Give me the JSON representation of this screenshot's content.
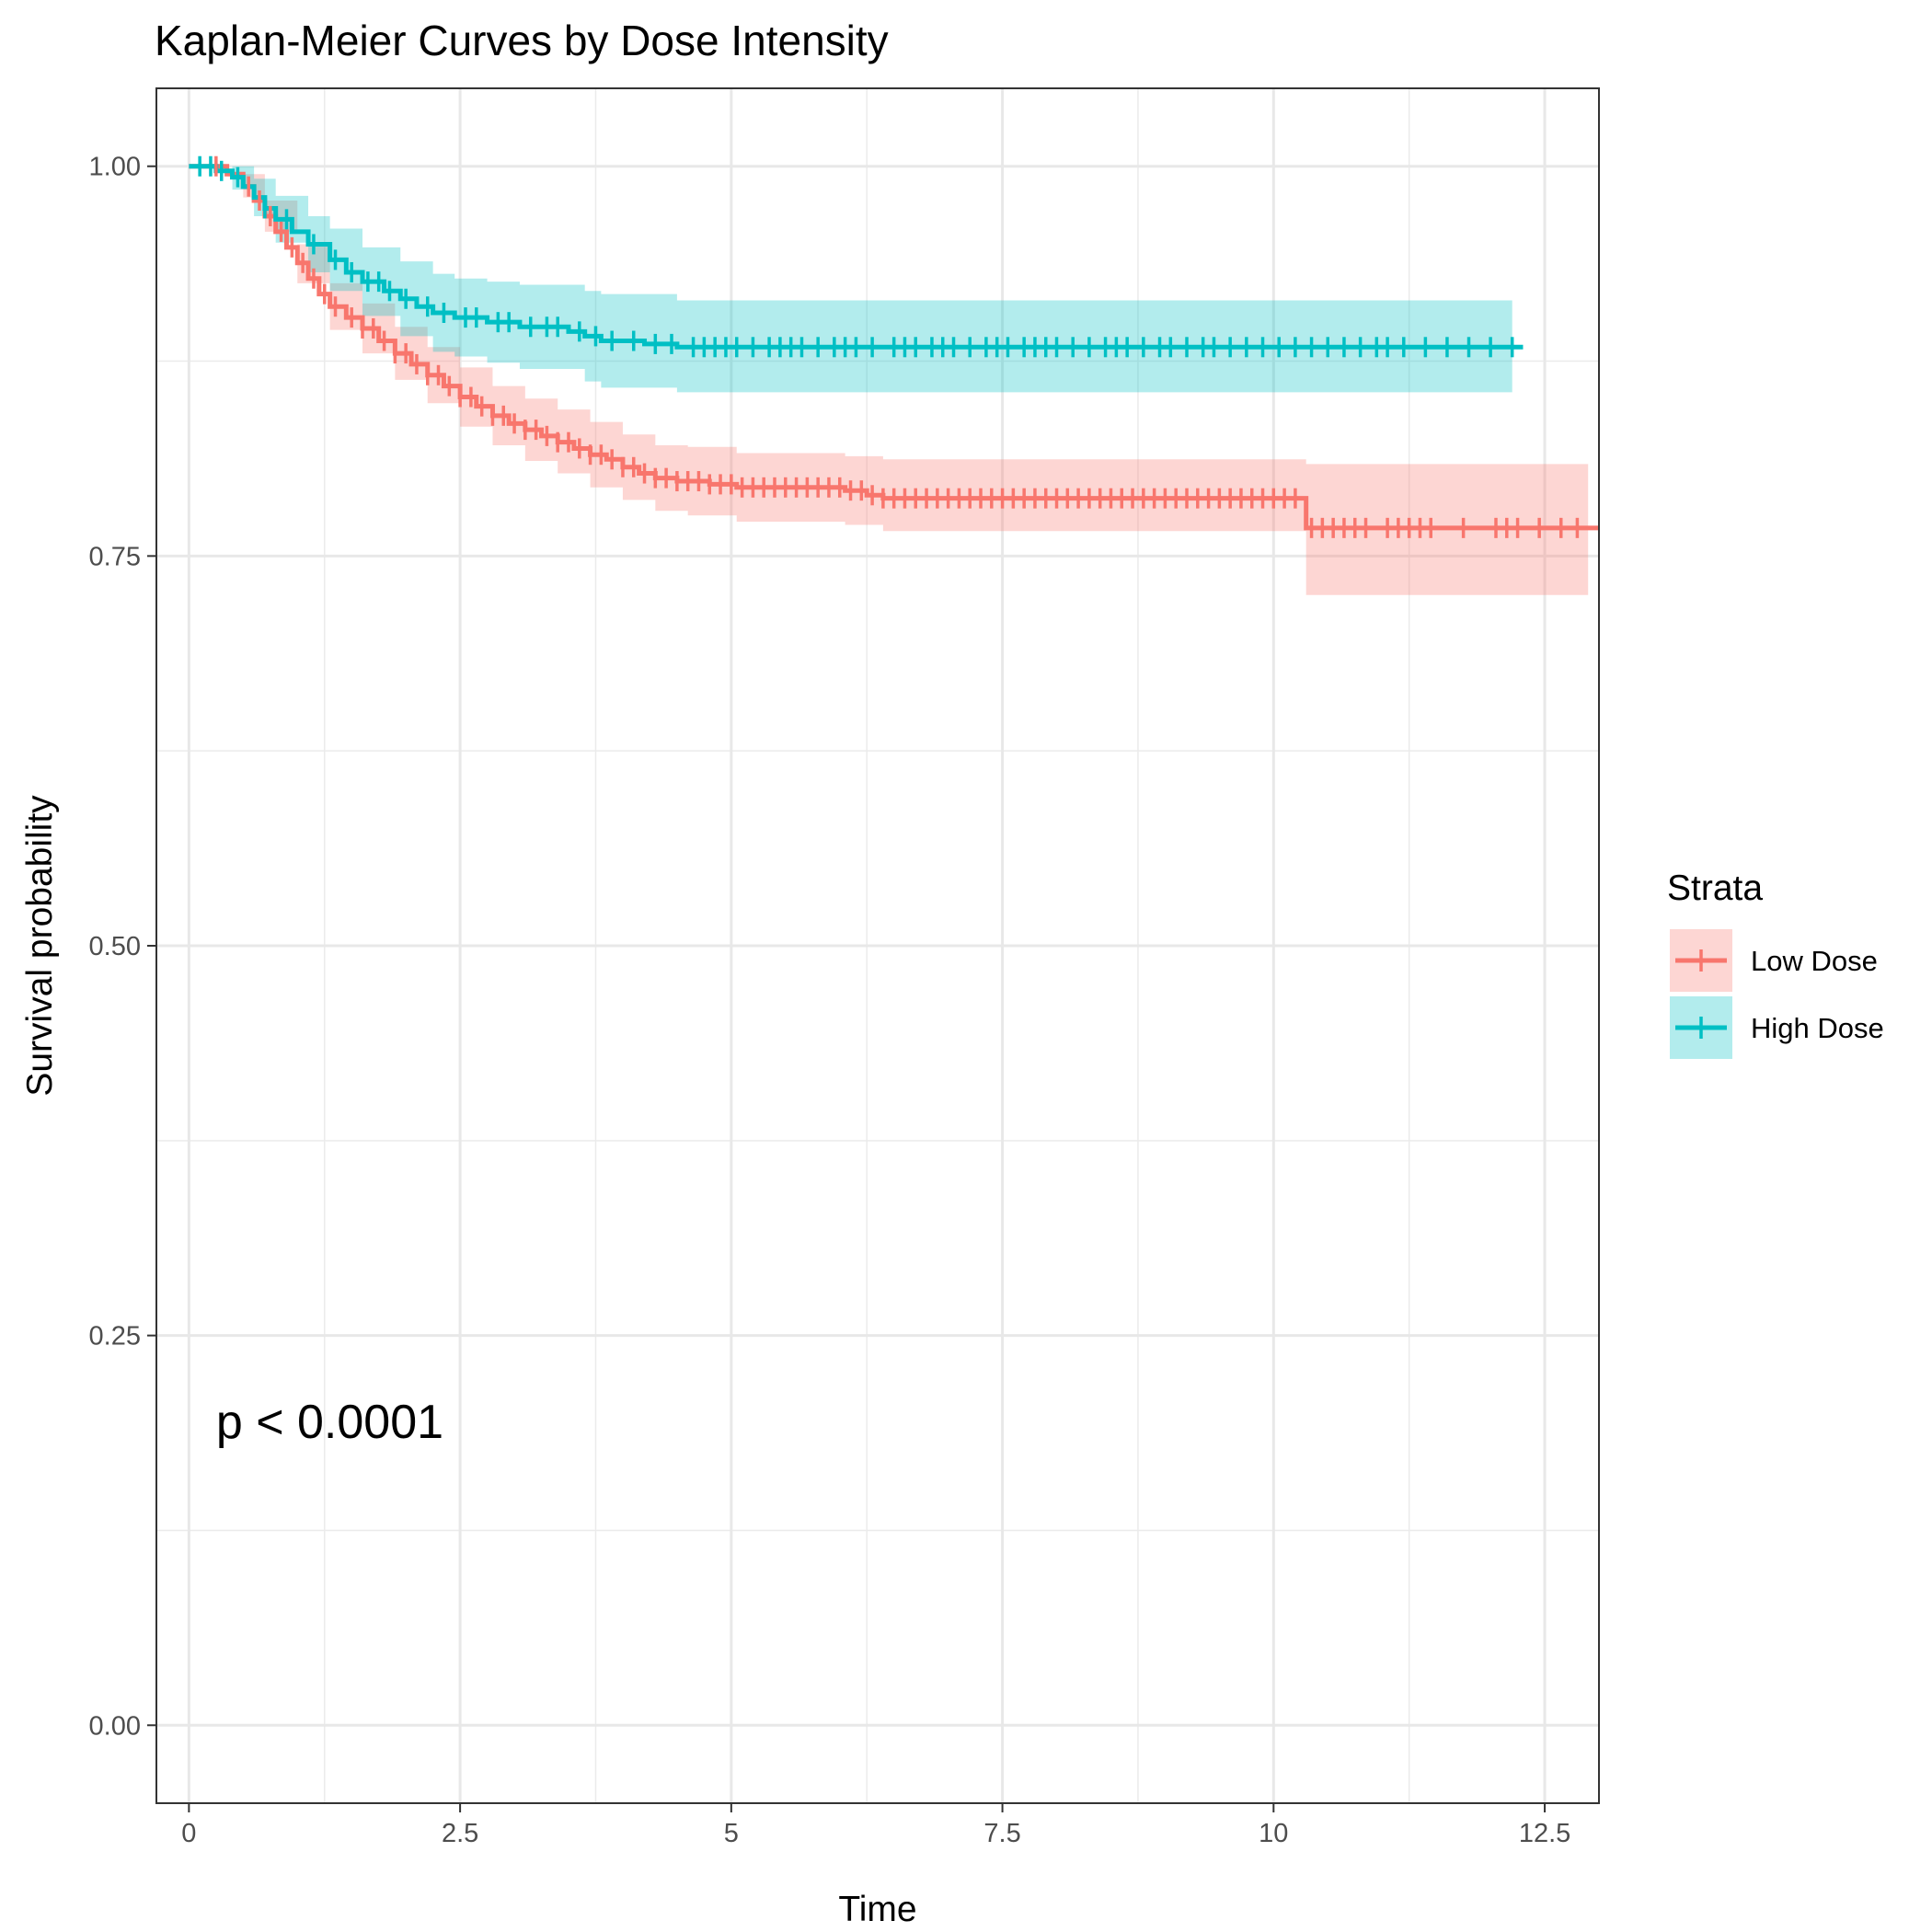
{
  "chart_data": {
    "type": "line",
    "title": "Kaplan-Meier Curves by Dose Intensity",
    "xlabel": "Time",
    "ylabel": "Survival probability",
    "xlim": [
      -0.3,
      13.0
    ],
    "ylim": [
      -0.05,
      1.05
    ],
    "x_ticks": [
      0,
      2.5,
      5,
      7.5,
      10,
      12.5
    ],
    "x_tick_labels": [
      "0",
      "2.5",
      "5",
      "7.5",
      "10",
      "12.5"
    ],
    "y_ticks": [
      0,
      0.25,
      0.5,
      0.75,
      1.0
    ],
    "y_tick_labels": [
      "0.00",
      "0.25",
      "0.50",
      "0.75",
      "1.00"
    ],
    "grid": true,
    "legend": {
      "title": "Strata",
      "position": "right"
    },
    "annotations": [
      {
        "text": "p < 0.0001",
        "x": 0.25,
        "y": 0.195
      }
    ],
    "series": [
      {
        "name": "Low Dose",
        "color": "#F8766D",
        "ci_color": "#F8766D",
        "steps": [
          [
            0,
            1.0
          ],
          [
            0.35,
            0.995
          ],
          [
            0.5,
            0.987
          ],
          [
            0.6,
            0.978
          ],
          [
            0.7,
            0.968
          ],
          [
            0.8,
            0.958
          ],
          [
            0.9,
            0.948
          ],
          [
            1.0,
            0.938
          ],
          [
            1.1,
            0.928
          ],
          [
            1.2,
            0.918
          ],
          [
            1.3,
            0.91
          ],
          [
            1.45,
            0.903
          ],
          [
            1.6,
            0.896
          ],
          [
            1.75,
            0.888
          ],
          [
            1.9,
            0.88
          ],
          [
            2.05,
            0.873
          ],
          [
            2.2,
            0.866
          ],
          [
            2.35,
            0.859
          ],
          [
            2.5,
            0.852
          ],
          [
            2.65,
            0.846
          ],
          [
            2.8,
            0.84
          ],
          [
            2.95,
            0.835
          ],
          [
            3.1,
            0.831
          ],
          [
            3.25,
            0.827
          ],
          [
            3.4,
            0.823
          ],
          [
            3.55,
            0.819
          ],
          [
            3.7,
            0.815
          ],
          [
            3.85,
            0.812
          ],
          [
            4.0,
            0.807
          ],
          [
            4.15,
            0.803
          ],
          [
            4.3,
            0.8
          ],
          [
            4.5,
            0.798
          ],
          [
            4.8,
            0.796
          ],
          [
            5.05,
            0.794
          ],
          [
            5.5,
            0.794
          ],
          [
            6.05,
            0.792
          ],
          [
            6.25,
            0.789
          ],
          [
            6.4,
            0.787
          ],
          [
            10.3,
            0.768
          ],
          [
            13.0,
            0.768
          ]
        ],
        "ci": [
          [
            0,
            1.0,
            1.0
          ],
          [
            0.5,
            0.98,
            0.995
          ],
          [
            0.7,
            0.958,
            0.978
          ],
          [
            1.0,
            0.925,
            0.95
          ],
          [
            1.3,
            0.895,
            0.925
          ],
          [
            1.6,
            0.88,
            0.912
          ],
          [
            1.9,
            0.863,
            0.897
          ],
          [
            2.2,
            0.848,
            0.884
          ],
          [
            2.5,
            0.833,
            0.871
          ],
          [
            2.8,
            0.821,
            0.859
          ],
          [
            3.1,
            0.811,
            0.851
          ],
          [
            3.4,
            0.803,
            0.844
          ],
          [
            3.7,
            0.794,
            0.836
          ],
          [
            4.0,
            0.786,
            0.828
          ],
          [
            4.3,
            0.779,
            0.821
          ],
          [
            4.6,
            0.776,
            0.82
          ],
          [
            5.05,
            0.772,
            0.816
          ],
          [
            6.05,
            0.77,
            0.814
          ],
          [
            6.4,
            0.766,
            0.812
          ],
          [
            10.3,
            0.725,
            0.809
          ],
          [
            12.9,
            0.725,
            0.809
          ]
        ],
        "censor_times": [
          0.25,
          0.55,
          0.65,
          0.75,
          0.85,
          0.95,
          1.05,
          1.15,
          1.25,
          1.35,
          1.5,
          1.6,
          1.7,
          1.8,
          1.9,
          2.0,
          2.1,
          2.2,
          2.3,
          2.4,
          2.5,
          2.6,
          2.7,
          2.8,
          2.9,
          3.0,
          3.1,
          3.2,
          3.3,
          3.4,
          3.5,
          3.6,
          3.7,
          3.8,
          3.9,
          4.0,
          4.1,
          4.2,
          4.3,
          4.4,
          4.5,
          4.6,
          4.7,
          4.8,
          4.9,
          5.0,
          5.1,
          5.2,
          5.3,
          5.4,
          5.5,
          5.6,
          5.7,
          5.8,
          5.9,
          6.0,
          6.1,
          6.2,
          6.3,
          6.4,
          6.5,
          6.6,
          6.7,
          6.8,
          6.9,
          7.0,
          7.1,
          7.2,
          7.3,
          7.4,
          7.5,
          7.6,
          7.7,
          7.8,
          7.9,
          8.0,
          8.1,
          8.2,
          8.3,
          8.4,
          8.5,
          8.6,
          8.7,
          8.8,
          8.9,
          9.0,
          9.1,
          9.2,
          9.3,
          9.4,
          9.5,
          9.6,
          9.7,
          9.8,
          9.9,
          10.0,
          10.1,
          10.2,
          10.35,
          10.45,
          10.55,
          10.65,
          10.75,
          10.85,
          11.05,
          11.15,
          11.25,
          11.35,
          11.45,
          11.75,
          12.05,
          12.15,
          12.25,
          12.45,
          12.65,
          12.8
        ]
      },
      {
        "name": "High Dose",
        "color": "#00BFC4",
        "ci_color": "#00BFC4",
        "steps": [
          [
            0,
            1.0
          ],
          [
            0.25,
            0.997
          ],
          [
            0.4,
            0.993
          ],
          [
            0.5,
            0.987
          ],
          [
            0.6,
            0.98
          ],
          [
            0.7,
            0.973
          ],
          [
            0.8,
            0.966
          ],
          [
            0.95,
            0.958
          ],
          [
            1.1,
            0.95
          ],
          [
            1.3,
            0.94
          ],
          [
            1.45,
            0.932
          ],
          [
            1.6,
            0.926
          ],
          [
            1.8,
            0.92
          ],
          [
            1.95,
            0.915
          ],
          [
            2.1,
            0.91
          ],
          [
            2.25,
            0.906
          ],
          [
            2.45,
            0.903
          ],
          [
            2.75,
            0.9
          ],
          [
            3.05,
            0.897
          ],
          [
            3.5,
            0.894
          ],
          [
            3.65,
            0.891
          ],
          [
            3.8,
            0.888
          ],
          [
            4.2,
            0.886
          ],
          [
            4.5,
            0.884
          ],
          [
            12.3,
            0.884
          ]
        ],
        "ci": [
          [
            0,
            1.0,
            1.0
          ],
          [
            0.4,
            0.985,
            1.0
          ],
          [
            0.6,
            0.968,
            0.992
          ],
          [
            0.8,
            0.951,
            0.981
          ],
          [
            1.1,
            0.932,
            0.968
          ],
          [
            1.3,
            0.92,
            0.96
          ],
          [
            1.6,
            0.904,
            0.948
          ],
          [
            1.95,
            0.891,
            0.939
          ],
          [
            2.25,
            0.881,
            0.931
          ],
          [
            2.45,
            0.878,
            0.928
          ],
          [
            2.75,
            0.874,
            0.926
          ],
          [
            3.05,
            0.87,
            0.924
          ],
          [
            3.65,
            0.862,
            0.92
          ],
          [
            3.8,
            0.858,
            0.918
          ],
          [
            4.5,
            0.855,
            0.914
          ],
          [
            12.2,
            0.855,
            0.914
          ]
        ],
        "censor_times": [
          0.1,
          0.2,
          0.3,
          0.45,
          0.7,
          0.9,
          1.15,
          1.35,
          1.5,
          1.65,
          1.75,
          1.85,
          2.0,
          2.2,
          2.35,
          2.55,
          2.65,
          2.85,
          2.95,
          3.15,
          3.3,
          3.4,
          3.6,
          3.75,
          3.9,
          4.1,
          4.3,
          4.45,
          4.65,
          4.75,
          4.85,
          4.95,
          5.05,
          5.2,
          5.35,
          5.45,
          5.55,
          5.65,
          5.8,
          5.95,
          6.05,
          6.15,
          6.3,
          6.5,
          6.6,
          6.7,
          6.85,
          6.95,
          7.05,
          7.2,
          7.35,
          7.45,
          7.55,
          7.7,
          7.8,
          7.9,
          8.0,
          8.15,
          8.3,
          8.45,
          8.55,
          8.65,
          8.8,
          8.95,
          9.05,
          9.2,
          9.35,
          9.45,
          9.6,
          9.75,
          9.9,
          10.05,
          10.2,
          10.35,
          10.5,
          10.65,
          10.8,
          10.95,
          11.05,
          11.2,
          11.4,
          11.6,
          11.8,
          12.0,
          12.2
        ]
      }
    ]
  }
}
